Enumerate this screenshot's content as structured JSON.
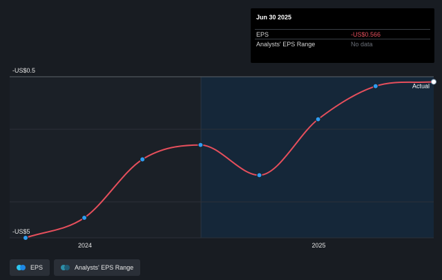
{
  "chart_data": {
    "type": "line",
    "x_axis": {
      "ticks": [
        {
          "date": "2024-01-01",
          "label": "2024"
        },
        {
          "date": "2025-01-01",
          "label": "2025"
        }
      ],
      "range": [
        "2023-09-30",
        "2025-06-30"
      ]
    },
    "y_axis": {
      "ticks": [
        {
          "value": -0.5,
          "label": "-US$0.5"
        },
        {
          "value": -5,
          "label": "-US$5"
        }
      ],
      "range": [
        -5,
        -0.5
      ]
    },
    "series": [
      {
        "name": "EPS",
        "color": "#e64f5c",
        "points": [
          {
            "date": "2023-09-30",
            "value": -5.0
          },
          {
            "date": "2023-12-31",
            "value": -4.43
          },
          {
            "date": "2024-03-31",
            "value": -2.77
          },
          {
            "date": "2024-06-30",
            "value": -2.36
          },
          {
            "date": "2024-09-30",
            "value": -3.22
          },
          {
            "date": "2024-12-31",
            "value": -1.63
          },
          {
            "date": "2025-03-31",
            "value": -0.69
          },
          {
            "date": "2025-06-30",
            "value": -0.566
          }
        ]
      }
    ],
    "annotations": [
      {
        "date": "2025-06-30",
        "value": -0.566,
        "text": "Actual"
      }
    ],
    "forecast_start": "2024-06-30",
    "grid": true
  },
  "tooltip": {
    "date": "Jun 30 2025",
    "rows": [
      {
        "label": "EPS",
        "value": "-US$0.566",
        "color": "#e64f5c"
      },
      {
        "label": "Analysts' EPS Range",
        "value": "No data",
        "color": "#6b7079"
      }
    ]
  },
  "legend": [
    {
      "label": "EPS",
      "colors": [
        "#2ec6f0",
        "#1e88e5"
      ]
    },
    {
      "label": "Analysts' EPS Range",
      "colors": [
        "#2e8fa8",
        "#1f5b73"
      ]
    }
  ]
}
